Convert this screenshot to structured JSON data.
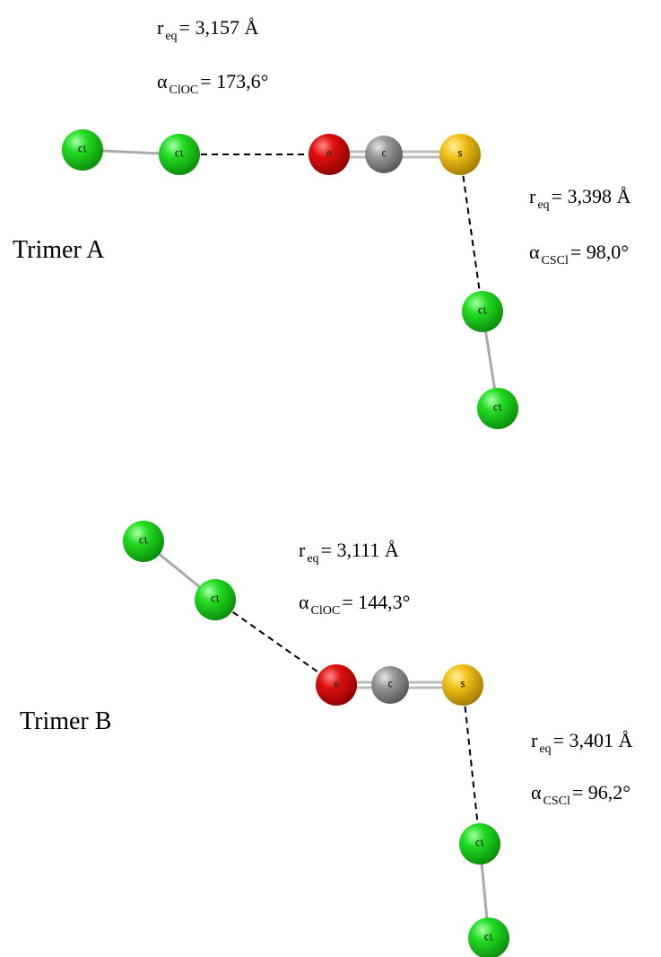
{
  "trimers": [
    {
      "label": "Trimer A",
      "measures": [
        {
          "symbol": "r",
          "subscript": "eq",
          "value": "= 3,157 Å"
        },
        {
          "symbol": "α",
          "subscript": "ClOC",
          "value": "= 173,6°"
        },
        {
          "symbol": "r",
          "subscript": "eq",
          "value": "= 3,398 Å"
        },
        {
          "symbol": "α",
          "subscript": "CSCl",
          "value": "= 98,0°"
        }
      ],
      "atoms": [
        {
          "label": "Cl"
        },
        {
          "label": "Cl"
        },
        {
          "label": "O"
        },
        {
          "label": "C"
        },
        {
          "label": "S"
        },
        {
          "label": "Cl"
        },
        {
          "label": "Cl"
        }
      ]
    },
    {
      "label": "Trimer B",
      "measures": [
        {
          "symbol": "r",
          "subscript": "eq",
          "value": "= 3,111 Å"
        },
        {
          "symbol": "α",
          "subscript": "ClOC",
          "value": "= 144,3°"
        },
        {
          "symbol": "r",
          "subscript": "eq",
          "value": "= 3,401 Å"
        },
        {
          "symbol": "α",
          "subscript": "CSCl",
          "value": "= 96,2°"
        }
      ],
      "atoms": [
        {
          "label": "Cl"
        },
        {
          "label": "Cl"
        },
        {
          "label": "O"
        },
        {
          "label": "C"
        },
        {
          "label": "S"
        },
        {
          "label": "Cl"
        },
        {
          "label": "Cl"
        }
      ]
    }
  ]
}
